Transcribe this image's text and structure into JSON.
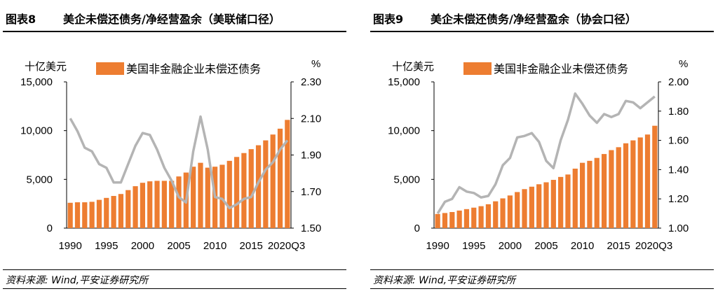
{
  "chart_data": [
    {
      "type": "bar",
      "figure_label": "图表8",
      "title": "美企未偿还债务/净经营盈余（美联储口径）",
      "y_left_unit": "十亿美元",
      "y_right_unit": "%",
      "ylim_left": [
        0,
        15000
      ],
      "ylim_right": [
        1.5,
        2.3
      ],
      "y_left_ticks": [
        "0",
        "5,000",
        "10,000",
        "15,000"
      ],
      "y_right_ticks": [
        "1.50",
        "1.70",
        "1.90",
        "2.10",
        "2.30"
      ],
      "x_tick_labels": [
        "1990",
        "1995",
        "2000",
        "2005",
        "2010",
        "2015",
        "2020Q3"
      ],
      "legend_placement": "top",
      "grid": false,
      "categories": [
        "1990",
        "1991",
        "1992",
        "1993",
        "1994",
        "1995",
        "1996",
        "1997",
        "1998",
        "1999",
        "2000",
        "2001",
        "2002",
        "2003",
        "2004",
        "2005",
        "2006",
        "2007",
        "2008",
        "2009",
        "2010",
        "2011",
        "2012",
        "2013",
        "2014",
        "2015",
        "2016",
        "2017",
        "2018",
        "2019",
        "2020Q3"
      ],
      "series": [
        {
          "name": "美国非金融企业未偿还债务",
          "kind": "bar",
          "axis": "left",
          "color": "#ED7D31",
          "values": [
            2600,
            2650,
            2650,
            2700,
            2900,
            3100,
            3300,
            3500,
            3900,
            4300,
            4650,
            4800,
            4850,
            4850,
            4850,
            5300,
            5700,
            6300,
            6700,
            6200,
            6300,
            6500,
            6900,
            7300,
            7700,
            8100,
            8500,
            9000,
            9600,
            10200,
            11100
          ]
        },
        {
          "name": "美企未偿还债务/净经营盈余",
          "kind": "line",
          "axis": "right",
          "color": "#B4B4B4",
          "values": [
            2.1,
            2.03,
            1.94,
            1.92,
            1.85,
            1.83,
            1.75,
            1.75,
            1.85,
            1.95,
            2.02,
            2.01,
            1.93,
            1.83,
            1.76,
            1.67,
            1.64,
            1.92,
            2.11,
            1.93,
            1.67,
            1.66,
            1.61,
            1.63,
            1.66,
            1.67,
            1.75,
            1.82,
            1.86,
            1.93,
            1.98
          ]
        }
      ]
    },
    {
      "type": "bar",
      "figure_label": "图表9",
      "title": "美企未偿还债务/净经营盈余（协会口径）",
      "y_left_unit": "十亿美元",
      "y_right_unit": "%",
      "ylim_left": [
        0,
        15000
      ],
      "ylim_right": [
        1.0,
        2.0
      ],
      "y_left_ticks": [
        "0",
        "5,000",
        "10,000",
        "15,000"
      ],
      "y_right_ticks": [
        "1.00",
        "1.20",
        "1.40",
        "1.60",
        "1.80",
        "2.00"
      ],
      "x_tick_labels": [
        "1990",
        "1995",
        "2000",
        "2005",
        "2010",
        "2015",
        "2020Q3"
      ],
      "legend_placement": "top",
      "grid": false,
      "categories": [
        "1990",
        "1991",
        "1992",
        "1993",
        "1994",
        "1995",
        "1996",
        "1997",
        "1998",
        "1999",
        "2000",
        "2001",
        "2002",
        "2003",
        "2004",
        "2005",
        "2006",
        "2007",
        "2008",
        "2009",
        "2010",
        "2011",
        "2012",
        "2013",
        "2014",
        "2015",
        "2016",
        "2017",
        "2018",
        "2019",
        "2020Q3"
      ],
      "series": [
        {
          "name": "美国非金融企业未偿还债务",
          "kind": "bar",
          "axis": "left",
          "color": "#ED7D31",
          "values": [
            1450,
            1550,
            1650,
            1800,
            1950,
            2100,
            2250,
            2450,
            2750,
            3050,
            3350,
            3700,
            4000,
            4250,
            4500,
            4700,
            4950,
            5250,
            5500,
            6100,
            6700,
            6900,
            7200,
            7600,
            8000,
            8300,
            8700,
            9000,
            9300,
            9600,
            10500
          ]
        },
        {
          "name": "美企未偿还债务/净经营盈余",
          "kind": "line",
          "axis": "right",
          "color": "#B4B4B4",
          "values": [
            1.1,
            1.18,
            1.2,
            1.28,
            1.25,
            1.24,
            1.21,
            1.22,
            1.3,
            1.43,
            1.48,
            1.62,
            1.63,
            1.65,
            1.59,
            1.46,
            1.41,
            1.6,
            1.74,
            1.92,
            1.85,
            1.77,
            1.72,
            1.78,
            1.76,
            1.78,
            1.87,
            1.86,
            1.82,
            1.86,
            1.9
          ]
        }
      ]
    }
  ],
  "source_text": "资料来源: Wind,平安证券研究所",
  "legend_bar_label": "美国非金融企业未偿还债务"
}
